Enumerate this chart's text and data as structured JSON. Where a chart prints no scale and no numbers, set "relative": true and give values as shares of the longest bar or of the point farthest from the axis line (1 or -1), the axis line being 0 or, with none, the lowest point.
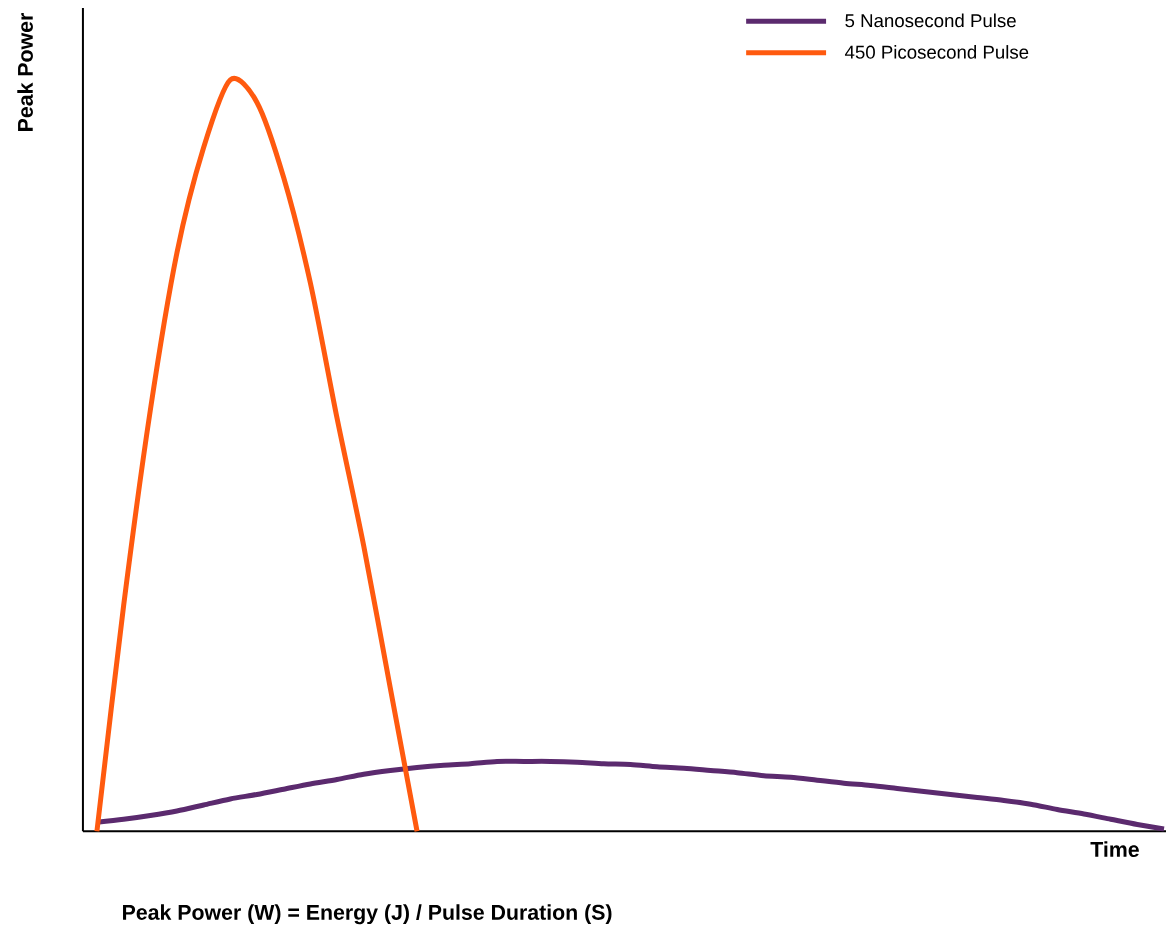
{
  "chart_data": {
    "type": "line",
    "relative": true,
    "xlabel": "Time",
    "ylabel": "Peak Power",
    "legend": "top right",
    "annotations": [
      "Peak Power (W) = Energy (J) / Pulse Duration (S)"
    ],
    "categories": [
      null,
      null,
      null,
      null,
      null,
      null,
      null,
      null,
      null,
      null,
      null,
      null,
      null,
      null,
      null,
      null,
      null,
      null,
      null,
      null,
      null,
      null,
      null,
      null,
      null,
      null,
      null,
      null,
      null,
      null,
      null,
      null,
      null,
      null,
      null,
      null,
      null,
      null,
      null,
      null,
      null
    ],
    "series": [
      {
        "name": "5 Nanosecond Pulse",
        "color": "#5b2a6e",
        "values": [
          0.012,
          0.016,
          0.021,
          0.027,
          0.035,
          0.043,
          0.049,
          0.056,
          0.063,
          0.069,
          0.076,
          0.081,
          0.085,
          0.088,
          0.09,
          0.093,
          0.093,
          0.093,
          0.092,
          0.09,
          0.089,
          0.086,
          0.084,
          0.081,
          0.078,
          0.074,
          0.072,
          0.068,
          0.064,
          0.061,
          0.057,
          0.053,
          0.049,
          0.045,
          0.041,
          0.036,
          0.029,
          0.023,
          0.016,
          0.009,
          0.003
        ]
      },
      {
        "name": "450 Picosecond Pulse",
        "color": "#ff5a0f",
        "values": [
          0,
          0.3,
          0.56,
          0.77,
          0.91,
          1.0,
          0.97,
          0.87,
          0.73,
          0.55,
          0.38,
          0.19,
          0,
          null,
          null,
          null,
          null,
          null,
          null,
          null,
          null,
          null,
          null,
          null,
          null,
          null,
          null,
          null,
          null,
          null,
          null,
          null,
          null,
          null,
          null,
          null,
          null,
          null,
          null,
          null,
          null
        ]
      }
    ]
  }
}
